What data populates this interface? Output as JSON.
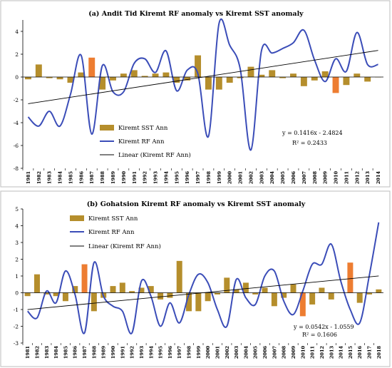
{
  "chart_data": [
    {
      "type": "bar+line",
      "title": "(a) Andit Tid Kiremt RF anomaly vs Kiremt SST anomaly",
      "categories": [
        "1981",
        "1982",
        "1983",
        "1984",
        "1985",
        "1986",
        "1987",
        "1988",
        "1989",
        "1990",
        "1991",
        "1992",
        "1993",
        "1994",
        "1995",
        "1996",
        "1997",
        "1998",
        "1999",
        "2000",
        "2001",
        "2002",
        "2003",
        "2004",
        "2005",
        "2006",
        "2007",
        "2008",
        "2009",
        "2010",
        "2011",
        "2012",
        "2013",
        "2014"
      ],
      "series": [
        {
          "name": "Kiremt SST Ann",
          "type": "bar",
          "values": [
            -0.2,
            1.1,
            -0.1,
            -0.2,
            -0.5,
            0.4,
            1.7,
            -1.1,
            -0.3,
            0.3,
            0.6,
            0.1,
            0.3,
            0.4,
            -0.5,
            -0.3,
            1.9,
            -1.1,
            -1.1,
            -0.5,
            -0.1,
            0.9,
            0.2,
            0.6,
            -0.1,
            0.3,
            -0.8,
            -0.3,
            0.5,
            -1.4,
            -0.7,
            0.3,
            -0.4,
            0.0
          ],
          "highlight": [
            6,
            29
          ],
          "color": "#B58E2C",
          "highlight_color": "#ED7D31"
        },
        {
          "name": "Kiremt RF Ann",
          "type": "line",
          "values": [
            -3.5,
            -4.3,
            -3.0,
            -4.3,
            -1.5,
            1.9,
            -5.0,
            1.0,
            -1.3,
            -1.3,
            1.2,
            1.6,
            0.4,
            2.3,
            -1.2,
            0.6,
            0.3,
            -5.2,
            4.7,
            2.8,
            0.7,
            -6.4,
            2.3,
            2.1,
            2.5,
            3.0,
            4.1,
            1.5,
            -0.4,
            1.6,
            0.5,
            3.9,
            1.1,
            1.1
          ],
          "color": "#3B4DB8"
        }
      ],
      "trend": {
        "name": "Linear (Kiremt RF Ann)",
        "slope": 0.1416,
        "intercept": -2.4824
      },
      "equation": "y = 0.1416x - 2.4824",
      "r2": "R² = 0.2433",
      "yticks": [
        "4",
        "2",
        "0",
        "-2",
        "-4",
        "-6",
        "-8"
      ],
      "ylim": [
        -8,
        5
      ],
      "grid": false,
      "legend": "center-left"
    },
    {
      "type": "bar+line",
      "title": "(b) Gohatsion Kiremt RF anomaly vs Kiremt SST anomaly",
      "categories": [
        "1981",
        "1982",
        "1983",
        "1984",
        "1985",
        "1986",
        "1987",
        "1988",
        "1989",
        "1990",
        "1991",
        "1992",
        "1993",
        "1994",
        "1995",
        "1996",
        "1997",
        "1998",
        "1999",
        "2000",
        "2001",
        "2002",
        "2003",
        "2004",
        "2005",
        "2006",
        "2007",
        "2008",
        "2009",
        "2010",
        "2011",
        "2012",
        "2013",
        "2014",
        "2015",
        "2016",
        "2017",
        "2018"
      ],
      "series": [
        {
          "name": "Kiremt SST Ann",
          "type": "bar",
          "values": [
            -0.2,
            1.1,
            -0.1,
            -0.2,
            -0.5,
            0.4,
            1.7,
            -1.1,
            -0.3,
            0.4,
            0.6,
            0.1,
            0.3,
            0.4,
            -0.4,
            -0.3,
            1.9,
            -1.1,
            -1.1,
            -0.5,
            -0.1,
            0.9,
            0.2,
            0.6,
            -0.1,
            0.3,
            -0.8,
            -0.3,
            0.5,
            -1.4,
            -0.7,
            0.3,
            -0.4,
            0.0,
            1.8,
            -0.6,
            -0.1,
            0.2
          ],
          "highlight": [
            6,
            29,
            34
          ],
          "color": "#B58E2C",
          "highlight_color": "#ED7D31"
        },
        {
          "name": "Kiremt RF Ann",
          "type": "line",
          "values": [
            -1.1,
            -1.5,
            0.1,
            -0.6,
            1.3,
            -0.1,
            -2.4,
            1.8,
            -0.2,
            -0.8,
            -1.1,
            -2.4,
            0.7,
            -0.2,
            -2.0,
            -0.6,
            -1.8,
            -0.1,
            1.1,
            0.6,
            -1.0,
            -2.0,
            0.8,
            -0.3,
            -0.7,
            1.0,
            1.3,
            -0.5,
            -1.3,
            0.1,
            1.7,
            1.7,
            2.9,
            0.7,
            -1.0,
            -1.8,
            1.0,
            4.2
          ],
          "color": "#3B4DB8"
        }
      ],
      "trend": {
        "name": "Linear (Kiremt RF Ann)",
        "slope": 0.0542,
        "intercept": -1.0559
      },
      "equation": "y = 0.0542x - 1.0559",
      "r2": "R² = 0.1606",
      "yticks": [
        "5",
        "4",
        "3",
        "2",
        "1",
        "0",
        "-1",
        "-2",
        "-3"
      ],
      "ylim": [
        -3,
        5
      ],
      "grid": false,
      "legend": "top-left"
    }
  ]
}
